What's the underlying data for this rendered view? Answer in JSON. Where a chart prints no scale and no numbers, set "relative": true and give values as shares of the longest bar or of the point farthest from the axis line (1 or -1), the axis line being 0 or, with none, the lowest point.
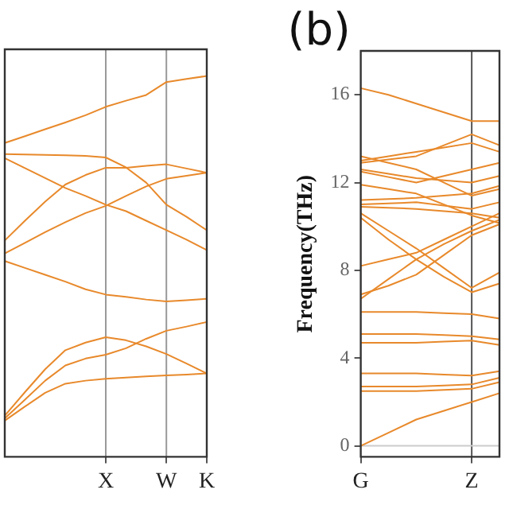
{
  "chart_data": [
    {
      "type": "line",
      "relative": true,
      "categories": [
        null,
        null,
        null,
        null,
        null,
        "X",
        null,
        null,
        "W",
        null,
        "K"
      ],
      "tick_labels": "x",
      "grid": false,
      "legend": false,
      "line_style": "solid",
      "ref_lines": [
        {
          "axis": "x",
          "value": "X",
          "color": "#999999"
        },
        {
          "axis": "x",
          "value": "W",
          "color": "#999999"
        }
      ],
      "series": [
        {
          "color": "#e8892b",
          "values": [
            0.824,
            0.842,
            0.86,
            0.878,
            0.897,
            0.919,
            0.935,
            0.95,
            0.984,
            0.992,
            1.0
          ]
        },
        {
          "color": "#e8892b",
          "values": [
            0.795,
            0.794,
            0.793,
            0.792,
            0.79,
            0.786,
            0.76,
            0.72,
            0.662,
            0.63,
            0.595
          ]
        },
        {
          "color": "#e8892b",
          "values": [
            0.784,
            0.758,
            0.732,
            0.706,
            0.685,
            0.662,
            0.645,
            0.62,
            0.595,
            0.57,
            0.543
          ]
        },
        {
          "color": "#e8892b",
          "values": [
            0.568,
            0.62,
            0.67,
            0.715,
            0.74,
            0.759,
            0.759,
            0.764,
            0.768,
            0.757,
            0.746
          ]
        },
        {
          "color": "#e8892b",
          "values": [
            0.534,
            0.562,
            0.59,
            0.616,
            0.64,
            0.659,
            0.685,
            0.71,
            0.73,
            0.738,
            0.746
          ]
        },
        {
          "color": "#e8892b",
          "values": [
            0.514,
            0.496,
            0.478,
            0.46,
            0.44,
            0.426,
            0.42,
            0.413,
            0.408,
            0.411,
            0.415
          ]
        },
        {
          "color": "#e8892b",
          "values": [
            0.108,
            0.17,
            0.23,
            0.28,
            0.3,
            0.314,
            0.306,
            0.29,
            0.27,
            0.245,
            0.219
          ]
        },
        {
          "color": "#e8892b",
          "values": [
            0.101,
            0.15,
            0.2,
            0.24,
            0.258,
            0.268,
            0.285,
            0.31,
            0.331,
            0.342,
            0.354
          ]
        },
        {
          "color": "#e8892b",
          "values": [
            0.095,
            0.132,
            0.168,
            0.192,
            0.2,
            0.205,
            0.208,
            0.211,
            0.214,
            0.216,
            0.219
          ]
        }
      ]
    },
    {
      "type": "line",
      "title": "(b)",
      "ylabel": "Frequency(THz)",
      "categories": [
        "G",
        null,
        null,
        null,
        "Z",
        null
      ],
      "ylim": [
        -0.5,
        18
      ],
      "yticks": [
        0,
        4,
        8,
        12,
        16
      ],
      "grid": false,
      "legend": false,
      "line_style": "solid",
      "ref_lines": [
        {
          "axis": "x",
          "value": "Z",
          "color": "#555555"
        },
        {
          "axis": "y",
          "value": 0,
          "color": "#cccccc"
        }
      ],
      "series": [
        {
          "color": "#e8892b",
          "values": [
            16.3,
            16.0,
            15.6,
            15.2,
            14.8,
            14.8
          ]
        },
        {
          "color": "#e8892b",
          "values": [
            0,
            0.6,
            1.2,
            1.6,
            2.0,
            2.4
          ]
        },
        {
          "color": "#e8892b",
          "values": [
            2.5,
            2.5,
            2.5,
            2.55,
            2.6,
            2.9
          ]
        },
        {
          "color": "#e8892b",
          "values": [
            2.7,
            2.7,
            2.7,
            2.75,
            2.8,
            3.1
          ]
        },
        {
          "color": "#e8892b",
          "values": [
            3.3,
            3.3,
            3.3,
            3.25,
            3.2,
            3.4
          ]
        },
        {
          "color": "#e8892b",
          "values": [
            4.7,
            4.7,
            4.7,
            4.75,
            4.8,
            4.6
          ]
        },
        {
          "color": "#e8892b",
          "values": [
            5.1,
            5.1,
            5.1,
            5.05,
            5.0,
            4.85
          ]
        },
        {
          "color": "#e8892b",
          "values": [
            6.1,
            6.1,
            6.1,
            6.05,
            6.0,
            5.8
          ]
        },
        {
          "color": "#e8892b",
          "values": [
            6.7,
            7.6,
            8.5,
            9.2,
            9.8,
            10.3
          ]
        },
        {
          "color": "#e8892b",
          "values": [
            6.9,
            7.3,
            7.8,
            8.7,
            9.6,
            10.1
          ]
        },
        {
          "color": "#e8892b",
          "values": [
            8.2,
            8.5,
            8.8,
            9.4,
            10.0,
            10.6
          ]
        },
        {
          "color": "#e8892b",
          "values": [
            10.4,
            9.4,
            8.5,
            7.7,
            7.0,
            7.4
          ]
        },
        {
          "color": "#e8892b",
          "values": [
            10.6,
            9.8,
            9.0,
            8.1,
            7.2,
            7.9
          ]
        },
        {
          "color": "#e8892b",
          "values": [
            10.9,
            10.85,
            10.8,
            10.7,
            10.6,
            10.4
          ]
        },
        {
          "color": "#e8892b",
          "values": [
            11.0,
            11.05,
            11.1,
            10.95,
            10.8,
            11.1
          ]
        },
        {
          "color": "#e8892b",
          "values": [
            11.2,
            11.25,
            11.3,
            11.4,
            11.5,
            11.85
          ]
        },
        {
          "color": "#e8892b",
          "values": [
            11.9,
            11.7,
            11.5,
            11.0,
            10.5,
            10.15
          ]
        },
        {
          "color": "#e8892b",
          "values": [
            12.5,
            12.25,
            12.0,
            12.3,
            12.6,
            12.9
          ]
        },
        {
          "color": "#e8892b",
          "values": [
            12.9,
            13.05,
            13.2,
            13.7,
            14.2,
            13.7
          ]
        },
        {
          "color": "#e8892b",
          "values": [
            13.2,
            12.9,
            12.6,
            12.0,
            11.4,
            11.7
          ]
        },
        {
          "color": "#e8892b",
          "values": [
            13.0,
            13.2,
            13.4,
            13.6,
            13.8,
            13.4
          ]
        },
        {
          "color": "#e8892b",
          "values": [
            12.6,
            12.4,
            12.2,
            12.1,
            12.0,
            12.3
          ]
        }
      ]
    }
  ]
}
